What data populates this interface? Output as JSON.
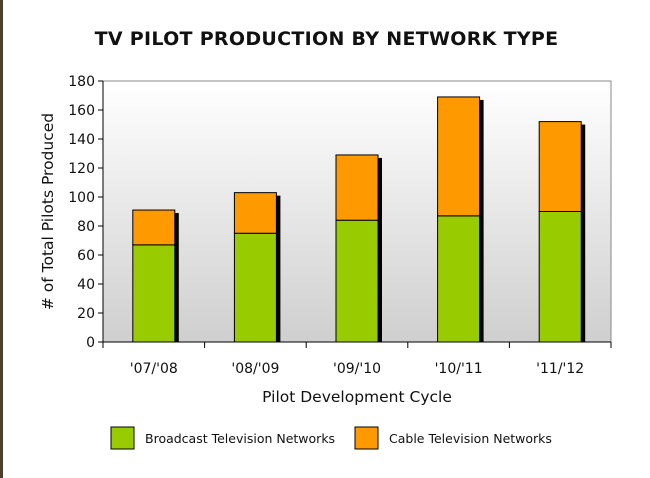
{
  "chart_data": {
    "type": "bar",
    "stacked": true,
    "title": "TV PILOT PRODUCTION BY NETWORK TYPE",
    "xlabel": "Pilot Development Cycle",
    "ylabel": "# of Total Pilots Produced",
    "categories": [
      "'07/'08",
      "'08/'09",
      "'09/'10",
      "'10/'11",
      "'11/'12"
    ],
    "ylim": [
      0,
      180
    ],
    "yticks": [
      0,
      20,
      40,
      60,
      80,
      100,
      120,
      140,
      160,
      180
    ],
    "series": [
      {
        "name": "Broadcast Television Networks",
        "color": "#99cc00",
        "values": [
          67,
          75,
          84,
          87,
          90
        ]
      },
      {
        "name": "Cable Television Networks",
        "color": "#ff9900",
        "values": [
          24,
          28,
          45,
          82,
          62
        ]
      }
    ],
    "legend_position": "bottom",
    "grid": false
  }
}
